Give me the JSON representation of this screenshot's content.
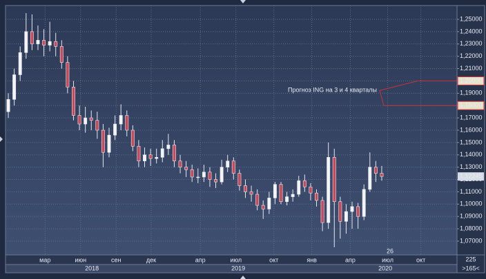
{
  "chart_data": {
    "type": "candlestick",
    "open": [
      1.175,
      1.185,
      1.205,
      1.223,
      1.24,
      1.23,
      1.233,
      1.229,
      1.232,
      1.228,
      1.215,
      1.195,
      1.172,
      1.165,
      1.17,
      1.168,
      1.16,
      1.142,
      1.156,
      1.165,
      1.172,
      1.16,
      1.147,
      1.135,
      1.14,
      1.137,
      1.138,
      1.145,
      1.148,
      1.135,
      1.13,
      1.128,
      1.122,
      1.122,
      1.126,
      1.12,
      1.118,
      1.13,
      1.135,
      1.125,
      1.115,
      1.11,
      1.108,
      1.099,
      1.096,
      1.105,
      1.116,
      1.102,
      1.106,
      1.108,
      1.119,
      1.114,
      1.109,
      1.103,
      1.085,
      1.138,
      1.102,
      1.086,
      1.094,
      1.098,
      1.09,
      1.112,
      1.13,
      1.125
    ],
    "high": [
      1.19,
      1.21,
      1.228,
      1.255,
      1.254,
      1.245,
      1.242,
      1.248,
      1.239,
      1.233,
      1.22,
      1.2,
      1.18,
      1.179,
      1.176,
      1.175,
      1.165,
      1.162,
      1.172,
      1.181,
      1.176,
      1.164,
      1.152,
      1.146,
      1.145,
      1.145,
      1.152,
      1.157,
      1.152,
      1.14,
      1.135,
      1.132,
      1.129,
      1.132,
      1.13,
      1.125,
      1.136,
      1.14,
      1.138,
      1.128,
      1.12,
      1.115,
      1.112,
      1.103,
      1.11,
      1.118,
      1.118,
      1.11,
      1.112,
      1.123,
      1.124,
      1.117,
      1.112,
      1.106,
      1.15,
      1.145,
      1.106,
      1.1,
      1.102,
      1.101,
      1.116,
      1.142,
      1.135,
      1.131
    ],
    "low": [
      1.17,
      1.18,
      1.2,
      1.218,
      1.225,
      1.225,
      1.22,
      1.224,
      1.22,
      1.21,
      1.19,
      1.168,
      1.16,
      1.158,
      1.16,
      1.153,
      1.13,
      1.138,
      1.152,
      1.16,
      1.155,
      1.143,
      1.13,
      1.13,
      1.131,
      1.133,
      1.134,
      1.14,
      1.13,
      1.125,
      1.122,
      1.118,
      1.117,
      1.118,
      1.114,
      1.113,
      1.116,
      1.126,
      1.12,
      1.111,
      1.105,
      1.102,
      1.095,
      1.088,
      1.092,
      1.1,
      1.1,
      1.099,
      1.102,
      1.106,
      1.11,
      1.103,
      1.098,
      1.078,
      1.08,
      1.065,
      1.072,
      1.076,
      1.08,
      1.08,
      1.087,
      1.11,
      1.118,
      1.119
    ],
    "close": [
      1.185,
      1.205,
      1.223,
      1.24,
      1.23,
      1.233,
      1.229,
      1.232,
      1.228,
      1.215,
      1.195,
      1.172,
      1.165,
      1.17,
      1.168,
      1.16,
      1.142,
      1.156,
      1.165,
      1.172,
      1.16,
      1.147,
      1.135,
      1.14,
      1.137,
      1.138,
      1.145,
      1.148,
      1.135,
      1.13,
      1.128,
      1.122,
      1.122,
      1.126,
      1.12,
      1.118,
      1.13,
      1.135,
      1.125,
      1.115,
      1.11,
      1.108,
      1.099,
      1.096,
      1.105,
      1.116,
      1.102,
      1.106,
      1.108,
      1.119,
      1.114,
      1.109,
      1.103,
      1.085,
      1.138,
      1.102,
      1.086,
      1.094,
      1.098,
      1.09,
      1.112,
      1.13,
      1.125,
      1.12245
    ],
    "up_color": "#f4f4f4",
    "down_color": "#c84a5a",
    "xlim": [
      -0.47,
      75.7
    ],
    "ylim": [
      1.0588,
      1.2612
    ],
    "yticks": [
      {
        "value": 1.07,
        "label": "1,07000"
      },
      {
        "value": 1.08,
        "label": "1,08000"
      },
      {
        "value": 1.09,
        "label": "1,09000"
      },
      {
        "value": 1.1,
        "label": "1,10000"
      },
      {
        "value": 1.11,
        "label": "1,11000"
      },
      {
        "value": 1.12,
        "label": "1,12000"
      },
      {
        "value": 1.13,
        "label": "1,13000"
      },
      {
        "value": 1.14,
        "label": "1,14000"
      },
      {
        "value": 1.15,
        "label": "1,15000"
      },
      {
        "value": 1.16,
        "label": "1,16000"
      },
      {
        "value": 1.17,
        "label": "1,17000"
      },
      {
        "value": 1.18,
        "label": "1,18000"
      },
      {
        "value": 1.19,
        "label": "1,19000"
      },
      {
        "value": 1.2,
        "label": "1,20000"
      },
      {
        "value": 1.21,
        "label": "1,21000"
      },
      {
        "value": 1.22,
        "label": "1,22000"
      },
      {
        "value": 1.23,
        "label": "1,23000"
      },
      {
        "value": 1.24,
        "label": "1,24000"
      },
      {
        "value": 1.25,
        "label": "1,25000"
      }
    ],
    "xticks": [
      {
        "value": 6.2,
        "label": "мар"
      },
      {
        "value": 12.2,
        "label": "июн"
      },
      {
        "value": 18.2,
        "label": "сен"
      },
      {
        "value": 24.1,
        "label": "дек"
      },
      {
        "value": 32.4,
        "label": "апр"
      },
      {
        "value": 38.4,
        "label": "июл"
      },
      {
        "value": 44.8,
        "label": "окт"
      },
      {
        "value": 51.2,
        "label": "янв"
      },
      {
        "value": 57.7,
        "label": "апр"
      },
      {
        "value": 64.0,
        "label": "июл"
      },
      {
        "value": 69.6,
        "label": "окт"
      }
    ],
    "year_ticks": [
      {
        "value": 14.1,
        "label": "2018"
      },
      {
        "value": 38.8,
        "label": "2019"
      },
      {
        "value": 63.6,
        "label": "2020"
      }
    ],
    "grid": true,
    "annotation": {
      "text": "Прогноз ING на 3 и 4 кварталы",
      "color": "#c8323c",
      "levels": [
        {
          "value": 1.2,
          "label": "1,20000"
        },
        {
          "value": 1.18,
          "label": "1,18000"
        }
      ]
    },
    "last_price": {
      "value": 1.12245,
      "label": "1,12245"
    },
    "cursor_label": "26",
    "corner_labels": [
      "225",
      ">165<"
    ]
  }
}
